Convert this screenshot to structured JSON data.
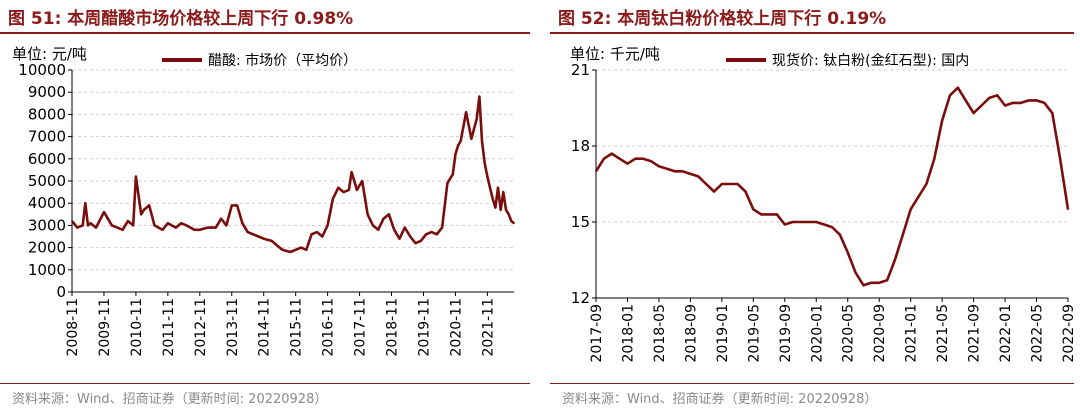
{
  "figures": [
    {
      "title": "图 51:  本周醋酸市场价格较上周下行 0.98%",
      "source": "资料来源：Wind、招商证券（更新时间: 20220928）",
      "chart_data": {
        "type": "line",
        "unit": "单位:  元/吨",
        "legend": "醋酸: 市场价（平均价）",
        "legend_position": "top",
        "ylim": [
          0,
          10000
        ],
        "yticks": [
          0,
          1000,
          2000,
          3000,
          4000,
          5000,
          6000,
          7000,
          8000,
          9000,
          10000
        ],
        "xlim": [
          "2008-11",
          "2022-09"
        ],
        "xticks": [
          "2008-11",
          "2009-11",
          "2010-11",
          "2011-11",
          "2012-11",
          "2013-11",
          "2014-11",
          "2015-11",
          "2016-11",
          "2017-11",
          "2018-11",
          "2019-11",
          "2020-11",
          "2021-11"
        ],
        "grid": true,
        "color": "#7a0e0e",
        "series": [
          {
            "x": [
              "2008-11",
              "2009-01",
              "2009-03",
              "2009-04",
              "2009-05",
              "2009-06",
              "2009-08",
              "2009-11",
              "2010-02",
              "2010-04",
              "2010-06",
              "2010-08",
              "2010-10",
              "2010-11",
              "2011-01",
              "2011-02",
              "2011-04",
              "2011-06",
              "2011-09",
              "2011-11",
              "2012-02",
              "2012-04",
              "2012-06",
              "2012-09",
              "2012-11",
              "2013-02",
              "2013-05",
              "2013-07",
              "2013-09",
              "2013-11",
              "2014-01",
              "2014-03",
              "2014-05",
              "2014-07",
              "2014-09",
              "2014-11",
              "2015-02",
              "2015-04",
              "2015-06",
              "2015-09",
              "2015-11",
              "2016-01",
              "2016-03",
              "2016-05",
              "2016-07",
              "2016-09",
              "2016-11",
              "2017-01",
              "2017-03",
              "2017-05",
              "2017-07",
              "2017-08",
              "2017-10",
              "2017-12",
              "2018-02",
              "2018-04",
              "2018-06",
              "2018-08",
              "2018-10",
              "2018-12",
              "2019-02",
              "2019-04",
              "2019-06",
              "2019-08",
              "2019-10",
              "2019-12",
              "2020-02",
              "2020-04",
              "2020-06",
              "2020-08",
              "2020-10",
              "2020-11",
              "2020-12",
              "2021-01",
              "2021-03",
              "2021-05",
              "2021-07",
              "2021-08",
              "2021-09",
              "2021-10",
              "2021-11",
              "2021-12",
              "2022-01",
              "2022-02",
              "2022-03",
              "2022-04",
              "2022-05",
              "2022-06",
              "2022-07",
              "2022-08",
              "2022-09"
            ],
            "y": [
              3200,
              2900,
              3000,
              4000,
              3000,
              3100,
              2900,
              3600,
              3000,
              2900,
              2800,
              3200,
              3000,
              5200,
              3500,
              3700,
              3900,
              3000,
              2800,
              3100,
              2900,
              3100,
              3000,
              2800,
              2800,
              2900,
              2900,
              3300,
              3000,
              3900,
              3900,
              3100,
              2700,
              2600,
              2500,
              2400,
              2300,
              2100,
              1900,
              1800,
              1900,
              2000,
              1900,
              2600,
              2700,
              2500,
              3000,
              4200,
              4700,
              4500,
              4600,
              5400,
              4600,
              5000,
              3500,
              3000,
              2800,
              3300,
              3500,
              2800,
              2400,
              2900,
              2500,
              2200,
              2300,
              2600,
              2700,
              2600,
              2900,
              4900,
              5300,
              6200,
              6600,
              6800,
              8100,
              6900,
              7800,
              8800,
              6800,
              5800,
              5200,
              4700,
              4200,
              3800,
              4700,
              3700,
              4500,
              3700,
              3500,
              3200,
              3100
            ]
          }
        ]
      }
    },
    {
      "title": "图 52:  本周钛白粉价格较上周下行 0.19%",
      "source": "资料来源：Wind、招商证券（更新时间: 20220928）",
      "chart_data": {
        "type": "line",
        "unit": "单位:  千元/吨",
        "legend": "现货价: 钛白粉(金红石型): 国内",
        "legend_position": "top",
        "ylim": [
          12,
          21
        ],
        "yticks": [
          12,
          15,
          18,
          21
        ],
        "xlim": [
          "2017-09",
          "2022-09"
        ],
        "xticks": [
          "2017-09",
          "2018-01",
          "2018-05",
          "2018-09",
          "2019-01",
          "2019-05",
          "2019-09",
          "2020-01",
          "2020-05",
          "2020-09",
          "2021-01",
          "2021-05",
          "2021-09",
          "2022-01",
          "2022-05",
          "2022-09"
        ],
        "grid": true,
        "color": "#7a0e0e",
        "series": [
          {
            "x": [
              "2017-09",
              "2017-10",
              "2017-11",
              "2017-12",
              "2018-01",
              "2018-02",
              "2018-03",
              "2018-04",
              "2018-05",
              "2018-06",
              "2018-07",
              "2018-08",
              "2018-09",
              "2018-10",
              "2018-11",
              "2018-12",
              "2019-01",
              "2019-02",
              "2019-03",
              "2019-04",
              "2019-05",
              "2019-06",
              "2019-07",
              "2019-08",
              "2019-09",
              "2019-10",
              "2019-11",
              "2019-12",
              "2020-01",
              "2020-02",
              "2020-03",
              "2020-04",
              "2020-05",
              "2020-06",
              "2020-07",
              "2020-08",
              "2020-09",
              "2020-10",
              "2020-11",
              "2020-12",
              "2021-01",
              "2021-02",
              "2021-03",
              "2021-04",
              "2021-05",
              "2021-06",
              "2021-07",
              "2021-08",
              "2021-09",
              "2021-10",
              "2021-11",
              "2021-12",
              "2022-01",
              "2022-02",
              "2022-03",
              "2022-04",
              "2022-05",
              "2022-06",
              "2022-07",
              "2022-08",
              "2022-09"
            ],
            "y": [
              17.0,
              17.5,
              17.7,
              17.5,
              17.3,
              17.5,
              17.5,
              17.4,
              17.2,
              17.1,
              17.0,
              17.0,
              16.9,
              16.8,
              16.5,
              16.2,
              16.5,
              16.5,
              16.5,
              16.2,
              15.5,
              15.3,
              15.3,
              15.3,
              14.9,
              15.0,
              15.0,
              15.0,
              15.0,
              14.9,
              14.8,
              14.5,
              13.8,
              13.0,
              12.5,
              12.6,
              12.6,
              12.7,
              13.5,
              14.5,
              15.5,
              16.0,
              16.5,
              17.5,
              19.0,
              20.0,
              20.3,
              19.8,
              19.3,
              19.6,
              19.9,
              20.0,
              19.6,
              19.7,
              19.7,
              19.8,
              19.8,
              19.7,
              19.3,
              17.5,
              15.5
            ]
          }
        ]
      }
    }
  ]
}
